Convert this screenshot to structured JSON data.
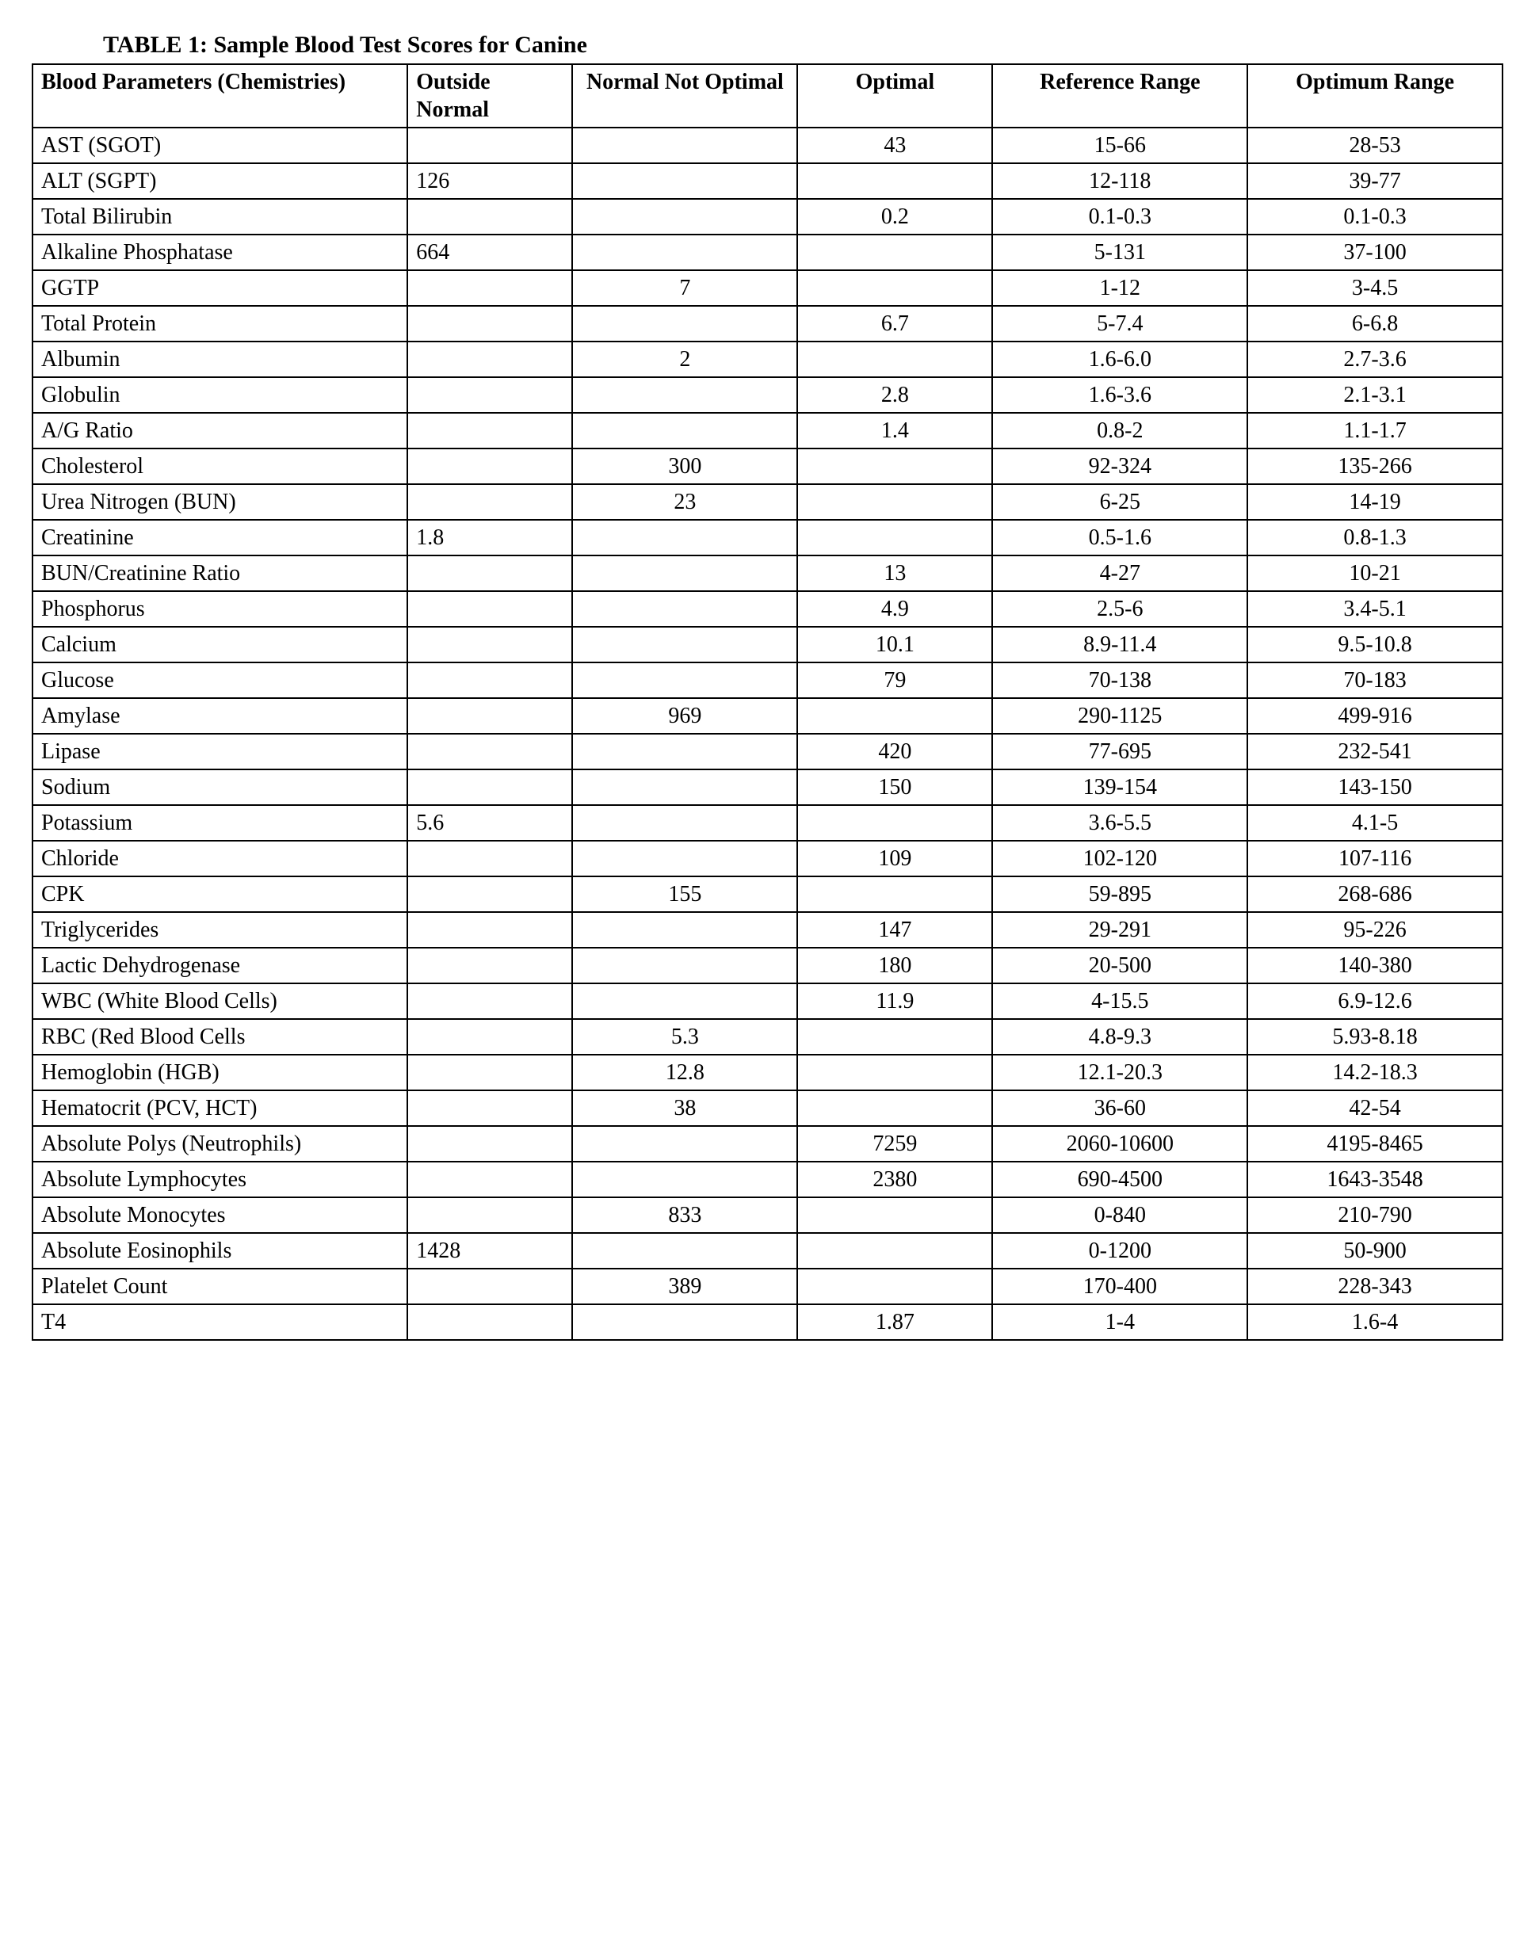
{
  "title": "TABLE 1: Sample Blood Test Scores for Canine",
  "columns": [
    "Blood Parameters (Chemistries)",
    "Outside Normal",
    "Normal Not Optimal",
    "Optimal",
    "Reference Range",
    "Optimum Range"
  ],
  "column_align": [
    "left",
    "left",
    "center",
    "center",
    "center",
    "center"
  ],
  "rows": [
    [
      "AST (SGOT)",
      "",
      "",
      "43",
      "15-66",
      "28-53"
    ],
    [
      "ALT (SGPT)",
      "126",
      "",
      "",
      "12-118",
      "39-77"
    ],
    [
      "Total Bilirubin",
      "",
      "",
      "0.2",
      "0.1-0.3",
      "0.1-0.3"
    ],
    [
      "Alkaline Phosphatase",
      "664",
      "",
      "",
      "5-131",
      "37-100"
    ],
    [
      "GGTP",
      "",
      "7",
      "",
      "1-12",
      "3-4.5"
    ],
    [
      "Total Protein",
      "",
      "",
      "6.7",
      "5-7.4",
      "6-6.8"
    ],
    [
      "Albumin",
      "",
      "2",
      "",
      "1.6-6.0",
      "2.7-3.6"
    ],
    [
      "Globulin",
      "",
      "",
      "2.8",
      "1.6-3.6",
      "2.1-3.1"
    ],
    [
      "A/G Ratio",
      "",
      "",
      "1.4",
      "0.8-2",
      "1.1-1.7"
    ],
    [
      "Cholesterol",
      "",
      "300",
      "",
      "92-324",
      "135-266"
    ],
    [
      "Urea Nitrogen (BUN)",
      "",
      "23",
      "",
      "6-25",
      "14-19"
    ],
    [
      "Creatinine",
      "1.8",
      "",
      "",
      "0.5-1.6",
      "0.8-1.3"
    ],
    [
      "BUN/Creatinine Ratio",
      "",
      "",
      "13",
      "4-27",
      "10-21"
    ],
    [
      "Phosphorus",
      "",
      "",
      "4.9",
      "2.5-6",
      "3.4-5.1"
    ],
    [
      "Calcium",
      "",
      "",
      "10.1",
      "8.9-11.4",
      "9.5-10.8"
    ],
    [
      "Glucose",
      "",
      "",
      "79",
      "70-138",
      "70-183"
    ],
    [
      "Amylase",
      "",
      "969",
      "",
      "290-1125",
      "499-916"
    ],
    [
      "Lipase",
      "",
      "",
      "420",
      "77-695",
      "232-541"
    ],
    [
      "Sodium",
      "",
      "",
      "150",
      "139-154",
      "143-150"
    ],
    [
      "Potassium",
      "5.6",
      "",
      "",
      "3.6-5.5",
      "4.1-5"
    ],
    [
      "Chloride",
      "",
      "",
      "109",
      "102-120",
      "107-116"
    ],
    [
      "CPK",
      "",
      "155",
      "",
      "59-895",
      "268-686"
    ],
    [
      "Triglycerides",
      "",
      "",
      "147",
      "29-291",
      "95-226"
    ],
    [
      "Lactic Dehydrogenase",
      "",
      "",
      "180",
      "20-500",
      "140-380"
    ],
    [
      "WBC (White Blood Cells)",
      "",
      "",
      "11.9",
      "4-15.5",
      "6.9-12.6"
    ],
    [
      "RBC (Red Blood Cells",
      "",
      "5.3",
      "",
      "4.8-9.3",
      "5.93-8.18"
    ],
    [
      "Hemoglobin (HGB)",
      "",
      "12.8",
      "",
      "12.1-20.3",
      "14.2-18.3"
    ],
    [
      "Hematocrit (PCV, HCT)",
      "",
      "38",
      "",
      "36-60",
      "42-54"
    ],
    [
      "Absolute Polys (Neutrophils)",
      "",
      "",
      "7259",
      "2060-10600",
      "4195-8465"
    ],
    [
      "Absolute Lymphocytes",
      "",
      "",
      "2380",
      "690-4500",
      "1643-3548"
    ],
    [
      "Absolute Monocytes",
      "",
      "833",
      "",
      "0-840",
      "210-790"
    ],
    [
      "Absolute Eosinophils",
      "1428",
      "",
      "",
      "0-1200",
      "50-900"
    ],
    [
      "Platelet Count",
      "",
      "389",
      "",
      "170-400",
      "228-343"
    ],
    [
      "T4",
      "",
      "",
      "1.87",
      "1-4",
      "1.6-4"
    ]
  ],
  "style": {
    "font_family": "Times New Roman",
    "title_fontsize": 30,
    "cell_fontsize": 28,
    "border_color": "#000000",
    "background_color": "#ffffff",
    "text_color": "#000000",
    "column_widths_pct": [
      25,
      11,
      15,
      13,
      17,
      17
    ]
  }
}
